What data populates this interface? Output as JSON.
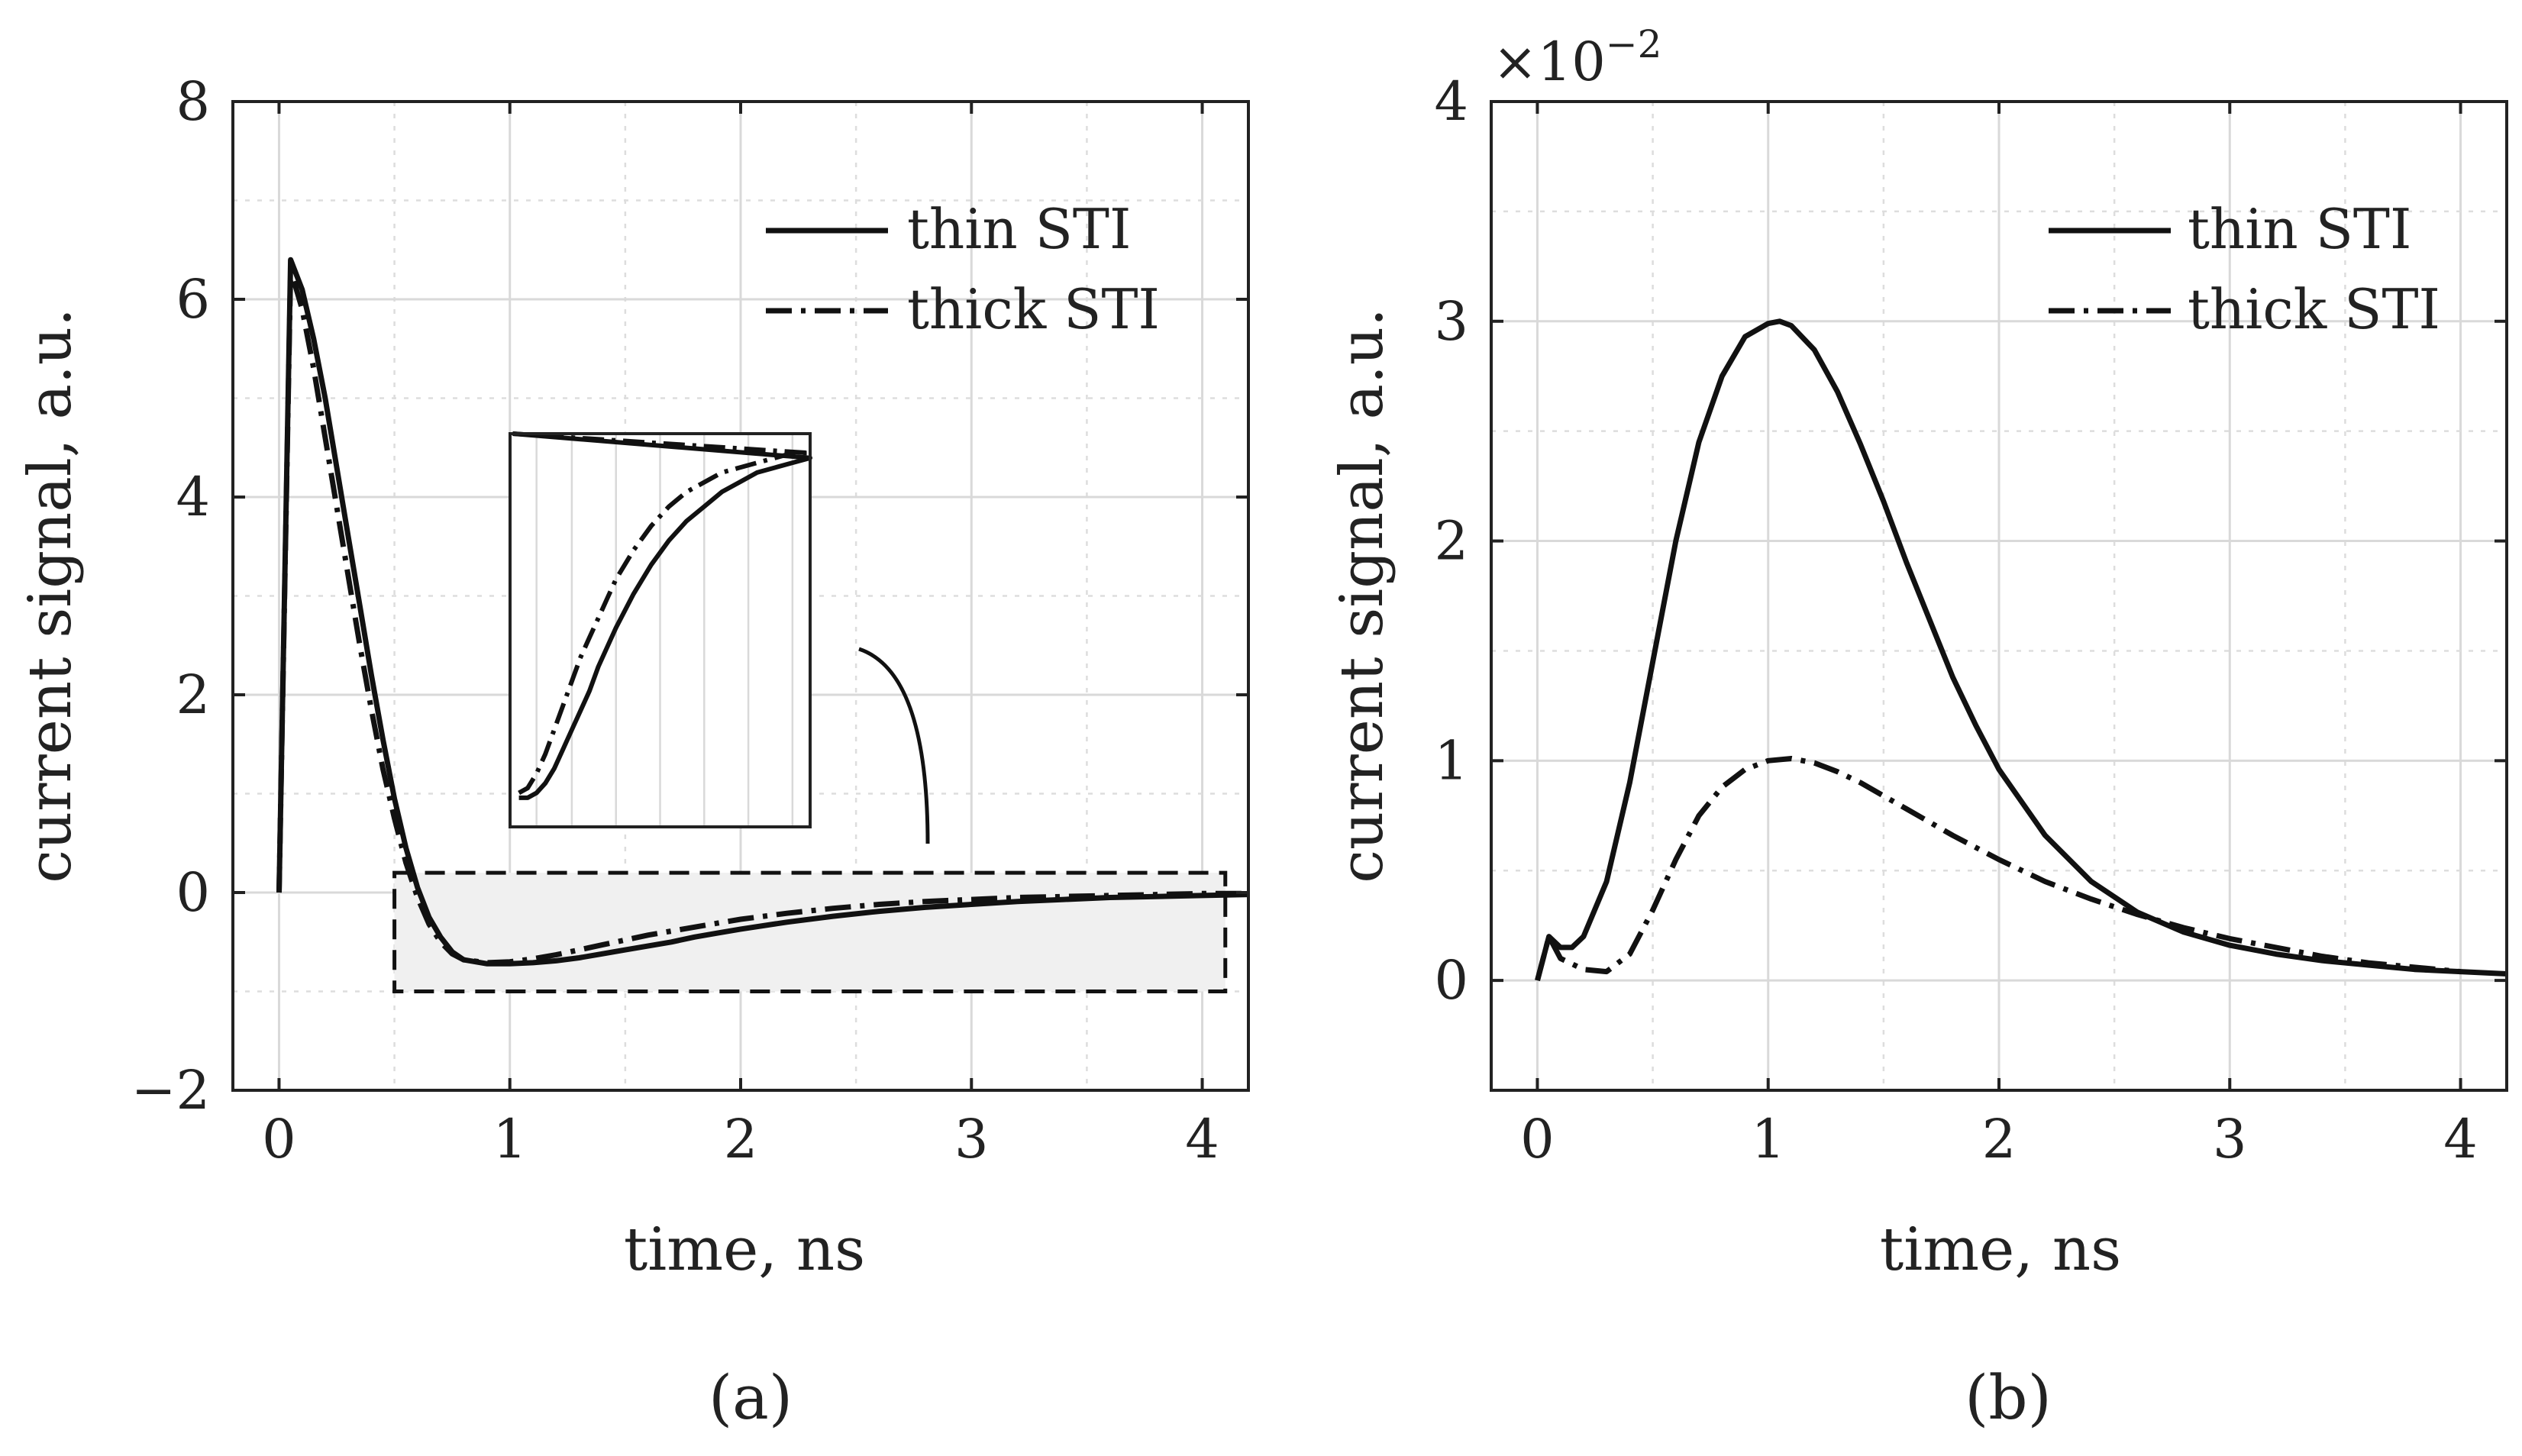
{
  "chart_data": [
    {
      "id": "a",
      "type": "line",
      "caption": "(a)",
      "xlabel": "time, ns",
      "ylabel": "current signal, a.u.",
      "xlim": [
        -0.2,
        4.2
      ],
      "ylim": [
        -2,
        8
      ],
      "xticks": [
        0,
        1,
        2,
        3,
        4
      ],
      "xtick_labels": [
        "0",
        "1",
        "2",
        "3",
        "4"
      ],
      "yticks": [
        -2,
        0,
        2,
        4,
        6,
        8
      ],
      "ytick_labels": [
        "−2",
        "0",
        "2",
        "4",
        "6",
        "8"
      ],
      "grid": true,
      "legend_position": "top-right",
      "series": [
        {
          "name": "thin STI",
          "style": "solid",
          "x": [
            0,
            0.05,
            0.1,
            0.15,
            0.2,
            0.25,
            0.3,
            0.35,
            0.4,
            0.45,
            0.5,
            0.55,
            0.6,
            0.65,
            0.7,
            0.75,
            0.8,
            0.9,
            1.0,
            1.1,
            1.2,
            1.3,
            1.4,
            1.5,
            1.6,
            1.7,
            1.8,
            1.9,
            2.0,
            2.2,
            2.4,
            2.6,
            2.8,
            3.0,
            3.2,
            3.4,
            3.6,
            3.8,
            4.0,
            4.2
          ],
          "y": [
            0,
            6.4,
            6.1,
            5.6,
            5.0,
            4.3,
            3.6,
            2.9,
            2.2,
            1.55,
            0.95,
            0.45,
            0.05,
            -0.25,
            -0.45,
            -0.6,
            -0.68,
            -0.72,
            -0.72,
            -0.71,
            -0.69,
            -0.66,
            -0.62,
            -0.58,
            -0.54,
            -0.5,
            -0.45,
            -0.41,
            -0.37,
            -0.3,
            -0.24,
            -0.19,
            -0.15,
            -0.12,
            -0.09,
            -0.07,
            -0.05,
            -0.04,
            -0.03,
            -0.02
          ]
        },
        {
          "name": "thick STI",
          "style": "dashdot",
          "x": [
            0,
            0.05,
            0.1,
            0.15,
            0.2,
            0.25,
            0.3,
            0.35,
            0.4,
            0.45,
            0.5,
            0.55,
            0.6,
            0.65,
            0.7,
            0.75,
            0.8,
            0.9,
            1.0,
            1.1,
            1.2,
            1.3,
            1.4,
            1.5,
            1.6,
            1.7,
            1.8,
            1.9,
            2.0,
            2.2,
            2.4,
            2.6,
            2.8,
            3.0,
            3.2,
            3.4,
            3.6,
            3.8,
            4.0,
            4.2
          ],
          "y": [
            0,
            6.3,
            5.9,
            5.3,
            4.6,
            3.9,
            3.2,
            2.5,
            1.85,
            1.25,
            0.75,
            0.3,
            -0.05,
            -0.32,
            -0.5,
            -0.62,
            -0.68,
            -0.71,
            -0.7,
            -0.67,
            -0.63,
            -0.58,
            -0.53,
            -0.48,
            -0.43,
            -0.39,
            -0.35,
            -0.31,
            -0.27,
            -0.21,
            -0.16,
            -0.12,
            -0.09,
            -0.07,
            -0.05,
            -0.04,
            -0.03,
            -0.02,
            -0.01,
            -0.01
          ]
        }
      ],
      "annotations": [
        {
          "type": "zoom-box",
          "x": [
            0.5,
            4.1
          ],
          "y": [
            -1,
            0.2
          ]
        },
        {
          "type": "inset",
          "shows": "zoomed view of dashed region"
        }
      ]
    },
    {
      "id": "b",
      "type": "line",
      "caption": "(b)",
      "xlabel": "time, ns",
      "ylabel": "current signal, a.u.",
      "exponent_label": "×10",
      "exponent_power": "−2",
      "xlim": [
        -0.2,
        4.2
      ],
      "ylim": [
        -0.005,
        0.04
      ],
      "xticks": [
        0,
        1,
        2,
        3,
        4
      ],
      "xtick_labels": [
        "0",
        "1",
        "2",
        "3",
        "4"
      ],
      "yticks": [
        0,
        0.01,
        0.02,
        0.03,
        0.04
      ],
      "ytick_labels": [
        "0",
        "1",
        "2",
        "3",
        "4"
      ],
      "grid": true,
      "legend_position": "top-right",
      "series": [
        {
          "name": "thin STI",
          "style": "solid",
          "x": [
            0,
            0.05,
            0.1,
            0.15,
            0.2,
            0.3,
            0.4,
            0.5,
            0.6,
            0.7,
            0.8,
            0.9,
            1.0,
            1.05,
            1.1,
            1.2,
            1.3,
            1.4,
            1.5,
            1.6,
            1.7,
            1.8,
            1.9,
            2.0,
            2.2,
            2.4,
            2.6,
            2.8,
            3.0,
            3.2,
            3.4,
            3.6,
            3.8,
            4.0,
            4.2
          ],
          "y": [
            0,
            0.002,
            0.0015,
            0.0015,
            0.002,
            0.0045,
            0.009,
            0.0145,
            0.02,
            0.0245,
            0.0275,
            0.0293,
            0.0299,
            0.03,
            0.0298,
            0.0287,
            0.0268,
            0.0244,
            0.0218,
            0.019,
            0.0164,
            0.0138,
            0.0116,
            0.0096,
            0.0066,
            0.0045,
            0.0031,
            0.0022,
            0.0016,
            0.0012,
            0.0009,
            0.0007,
            0.0005,
            0.0004,
            0.0003
          ]
        },
        {
          "name": "thick STI",
          "style": "dashdot",
          "x": [
            0,
            0.05,
            0.1,
            0.2,
            0.3,
            0.4,
            0.5,
            0.6,
            0.7,
            0.8,
            0.9,
            1.0,
            1.1,
            1.2,
            1.3,
            1.4,
            1.5,
            1.6,
            1.8,
            2.0,
            2.2,
            2.4,
            2.6,
            2.8,
            3.0,
            3.2,
            3.4,
            3.6,
            3.8,
            4.0
          ],
          "y": [
            0,
            0.002,
            0.001,
            0.0005,
            0.0004,
            0.0012,
            0.0032,
            0.0055,
            0.0075,
            0.0088,
            0.0096,
            0.01,
            0.0101,
            0.0099,
            0.0095,
            0.009,
            0.0084,
            0.0078,
            0.0066,
            0.0055,
            0.0045,
            0.0037,
            0.003,
            0.0024,
            0.0019,
            0.0015,
            0.0011,
            0.0008,
            0.0006,
            0.0004
          ]
        }
      ]
    }
  ]
}
